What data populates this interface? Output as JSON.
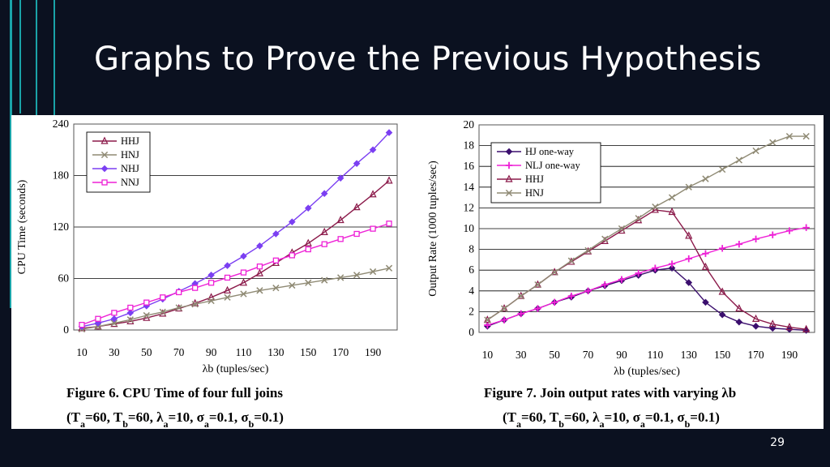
{
  "slide": {
    "title": "Graphs to Prove the Previous Hypothesis",
    "page_number": "29",
    "accent_color": "#1aa3a8",
    "background": "#0b1120"
  },
  "chart_data": [
    {
      "type": "line",
      "caption": "Figure 6. CPU Time of four full joins",
      "params": "(Ta=60, Tb=60, λa=10, σa=0.1, σb=0.1)",
      "xlabel": "λb (tuples/sec)",
      "ylabel": "CPU Time (seconds)",
      "xlim": [
        5,
        205
      ],
      "ylim": [
        0,
        240
      ],
      "x_ticks": [
        10,
        30,
        50,
        70,
        90,
        110,
        130,
        150,
        170,
        190
      ],
      "y_ticks": [
        0,
        60,
        120,
        180,
        240
      ],
      "grid": "horizontal",
      "legend_position": "top-left",
      "x": [
        10,
        20,
        30,
        40,
        50,
        60,
        70,
        80,
        90,
        100,
        110,
        120,
        130,
        140,
        150,
        160,
        170,
        180,
        190,
        200
      ],
      "series": [
        {
          "name": "HHJ",
          "marker": "triangle",
          "color": "#8b1a4a",
          "values": [
            2,
            4,
            7,
            10,
            14,
            19,
            25,
            31,
            38,
            46,
            55,
            66,
            78,
            90,
            101,
            114,
            128,
            143,
            158,
            174
          ]
        },
        {
          "name": "HNJ",
          "marker": "x",
          "color": "#8f8a74",
          "values": [
            1,
            4,
            8,
            12,
            17,
            21,
            26,
            30,
            34,
            38,
            42,
            46,
            49,
            52,
            55,
            58,
            61,
            64,
            68,
            72
          ]
        },
        {
          "name": "NHJ",
          "marker": "diamond",
          "color": "#7b3ff2",
          "values": [
            4,
            8,
            13,
            20,
            28,
            36,
            45,
            54,
            64,
            75,
            86,
            98,
            112,
            126,
            142,
            159,
            177,
            194,
            210,
            230
          ]
        },
        {
          "name": "NNJ",
          "marker": "square",
          "color": "#ee21d6",
          "values": [
            6,
            13,
            20,
            26,
            32,
            38,
            44,
            49,
            55,
            61,
            67,
            74,
            81,
            87,
            94,
            100,
            106,
            112,
            118,
            124
          ]
        }
      ]
    },
    {
      "type": "line",
      "caption": "Figure 7. Join output rates with varying λb",
      "params": "(Ta=60, Tb=60, λa=10, σa=0.1, σb=0.1)",
      "xlabel": "λb (tuples/sec)",
      "ylabel": "Output Rate (1000 tuples/sec)",
      "xlim": [
        5,
        205
      ],
      "ylim": [
        0,
        20
      ],
      "x_ticks": [
        10,
        30,
        50,
        70,
        90,
        110,
        130,
        150,
        170,
        190
      ],
      "y_ticks": [
        0,
        2,
        4,
        6,
        8,
        10,
        12,
        14,
        16,
        18,
        20
      ],
      "grid": "horizontal",
      "legend_position": "top-left",
      "x": [
        10,
        20,
        30,
        40,
        50,
        60,
        70,
        80,
        90,
        100,
        110,
        120,
        130,
        140,
        150,
        160,
        170,
        180,
        190,
        200
      ],
      "series": [
        {
          "name": "HJ  one-way",
          "marker": "diamond",
          "color": "#3b0f6e",
          "values": [
            0.6,
            1.2,
            1.8,
            2.3,
            2.9,
            3.4,
            4.0,
            4.5,
            5.0,
            5.5,
            6.0,
            6.2,
            4.8,
            2.9,
            1.7,
            1.0,
            0.6,
            0.4,
            0.3,
            0.2
          ]
        },
        {
          "name": "NLJ  one-way",
          "marker": "plus",
          "color": "#ee21d6",
          "values": [
            0.7,
            1.2,
            1.8,
            2.3,
            2.9,
            3.5,
            4.0,
            4.6,
            5.1,
            5.7,
            6.2,
            6.6,
            7.1,
            7.6,
            8.1,
            8.5,
            9.0,
            9.4,
            9.8,
            10.1
          ]
        },
        {
          "name": "HHJ",
          "marker": "triangle",
          "color": "#8b1a4a",
          "values": [
            1.2,
            2.3,
            3.5,
            4.6,
            5.8,
            6.8,
            7.8,
            8.8,
            9.8,
            10.8,
            11.8,
            11.6,
            9.3,
            6.3,
            3.9,
            2.3,
            1.3,
            0.8,
            0.5,
            0.3
          ]
        },
        {
          "name": "HNJ",
          "marker": "x",
          "color": "#8f8a74",
          "values": [
            1.2,
            2.3,
            3.5,
            4.6,
            5.8,
            6.9,
            7.9,
            9.0,
            10.0,
            11.0,
            12.1,
            13.0,
            14.0,
            14.8,
            15.7,
            16.6,
            17.5,
            18.3,
            18.9,
            18.9
          ]
        }
      ]
    }
  ]
}
